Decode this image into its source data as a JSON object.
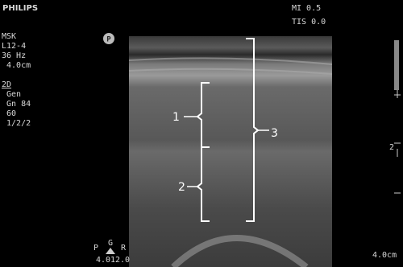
{
  "header": {
    "brand": "PHILIPS",
    "mi": "MI 0.5",
    "tis": "TIS 0.0"
  },
  "params": [
    "MSK",
    "L12-4",
    "36 Hz",
    " 4.0cm",
    "2D",
    " Gen",
    " Gn 84",
    " 60",
    " 1/2/2"
  ],
  "probe_marker": "P",
  "annotations": [
    "1",
    "2",
    "3"
  ],
  "focus_marker": "2",
  "depth": "4.0cm",
  "orientation": {
    "left": "P",
    "top": "G",
    "right": "R",
    "val1": "4.0",
    "val2": "12.0"
  }
}
